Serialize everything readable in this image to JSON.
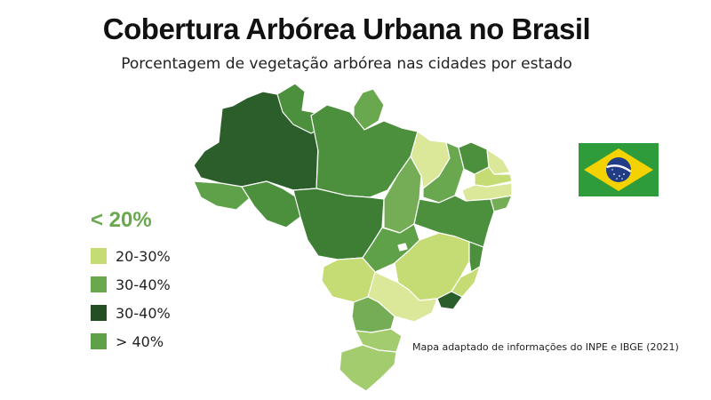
{
  "header": {
    "title": "Cobertura Arbórea Urbana no Brasil",
    "subtitle": "Porcentagem de vegetação arbórea nas cidades por estado"
  },
  "legend": {
    "heading": "< 20%",
    "items": [
      {
        "label": "20-30%",
        "color": "#c5dc74"
      },
      {
        "label": "30-40%",
        "color": "#69a84e"
      },
      {
        "label": "30-40%",
        "color": "#244f24"
      },
      {
        "label": "> 40%",
        "color": "#5fa148"
      }
    ]
  },
  "source_note": "Mapa adaptado de informações do INPE e IBGE (2021)",
  "flag": {
    "name": "brazil-flag",
    "green": "#2f9c3b",
    "yellow": "#f4d200",
    "blue": "#213d86"
  },
  "colors": {
    "dark": "#2b5e2b",
    "mid": "#4c8f3c",
    "green": "#5c9c45",
    "medium_green": "#74ad55",
    "light": "#c5dc74",
    "pale": "#dbe89a"
  }
}
